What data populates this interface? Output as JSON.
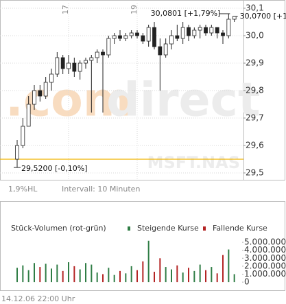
{
  "chart_data": [
    {
      "type": "candlestick",
      "x": [
        930,
        940,
        950,
        960,
        970,
        980,
        990,
        1000,
        1010,
        1020,
        1030,
        1040,
        1050,
        1060,
        1070,
        1080,
        1090,
        1100,
        1110,
        1120,
        1130,
        1140,
        1150,
        1160,
        1170,
        1180,
        1190,
        1200,
        1210,
        1220,
        1230,
        1240,
        1250,
        1260,
        1270,
        1280,
        1290,
        1300,
        1310
      ],
      "open": [
        29.55,
        29.6,
        29.67,
        29.75,
        29.8,
        29.78,
        29.83,
        29.86,
        29.92,
        29.88,
        29.9,
        29.87,
        29.9,
        29.91,
        29.92,
        29.94,
        29.93,
        29.99,
        30.0,
        29.99,
        30.0,
        30.01,
        30.0,
        29.98,
        30.03,
        29.96,
        29.93,
        29.97,
        30.0,
        29.99,
        30.03,
        30.0,
        30.02,
        30.03,
        30.01,
        30.03,
        30.01,
        30.0,
        30.06
      ],
      "high": [
        29.62,
        29.7,
        29.78,
        29.82,
        29.82,
        29.85,
        29.88,
        29.94,
        29.93,
        29.93,
        29.92,
        29.91,
        29.92,
        29.93,
        29.95,
        29.95,
        30.0,
        30.01,
        30.02,
        30.01,
        30.02,
        30.02,
        30.01,
        30.04,
        30.05,
        29.99,
        29.99,
        30.02,
        30.04,
        30.05,
        30.04,
        30.03,
        30.04,
        30.04,
        30.04,
        30.03,
        30.02,
        30.08,
        30.07
      ],
      "low": [
        29.52,
        29.59,
        29.67,
        29.73,
        29.76,
        29.77,
        29.8,
        29.85,
        29.86,
        29.86,
        29.85,
        29.84,
        29.88,
        29.72,
        29.9,
        29.72,
        29.92,
        29.97,
        29.98,
        29.98,
        29.99,
        29.99,
        29.97,
        29.96,
        29.95,
        29.8,
        29.92,
        29.95,
        29.98,
        29.97,
        29.98,
        29.99,
        29.99,
        30.0,
        30.0,
        29.99,
        29.97,
        29.99,
        30.05
      ],
      "close": [
        29.6,
        29.67,
        29.75,
        29.8,
        29.78,
        29.83,
        29.86,
        29.92,
        29.88,
        29.9,
        29.87,
        29.9,
        29.91,
        29.92,
        29.94,
        29.93,
        29.99,
        30.0,
        29.99,
        30.0,
        30.01,
        30.0,
        29.98,
        30.03,
        29.96,
        29.93,
        29.97,
        30.0,
        29.99,
        30.03,
        30.0,
        30.02,
        30.03,
        30.01,
        30.03,
        30.01,
        30.0,
        30.06,
        30.07
      ],
      "up_color": "#ffffff",
      "down_color": "#222222",
      "wick_color": "#222222",
      "xlim": [
        900,
        1326
      ],
      "xticks": [
        {
          "value": 1020,
          "label": "17"
        },
        {
          "value": 1140,
          "label": "19"
        }
      ],
      "ylim": [
        29.475,
        30.1175
      ],
      "yticks": [
        {
          "value": 29.5,
          "label": "29,5"
        },
        {
          "value": 29.6,
          "label": "29,6"
        },
        {
          "value": 29.7,
          "label": "29,7"
        },
        {
          "value": 29.8,
          "label": "29,8"
        },
        {
          "value": 29.9,
          "label": "29,9"
        },
        {
          "value": 30.0,
          "label": "30,0"
        },
        {
          "value": 30.1,
          "label": "30,1"
        }
      ],
      "grid": true,
      "reference_line": {
        "value": 29.55,
        "color": "#f0b400"
      },
      "annotations": [
        {
          "label": "30,0801 [+1,79%]",
          "value": 30.0801,
          "x": 1300
        },
        {
          "label": "30,0700 [+1",
          "value": 30.07,
          "x": 1310
        },
        {
          "label": "29,5200 [-0,10%]",
          "value": 29.52,
          "x": 930
        }
      ],
      "watermark": [
        ".com",
        "direct",
        "MSFT.NAS"
      ]
    },
    {
      "type": "volume",
      "title": "Stück-Volumen (rot-grün)",
      "x": [
        930,
        940,
        950,
        960,
        970,
        980,
        990,
        1000,
        1010,
        1020,
        1030,
        1040,
        1050,
        1060,
        1070,
        1080,
        1090,
        1100,
        1110,
        1120,
        1130,
        1140,
        1150,
        1160,
        1170,
        1180,
        1190,
        1200,
        1210,
        1220,
        1230,
        1240,
        1250,
        1260,
        1270,
        1280,
        1290,
        1300,
        1310
      ],
      "values": [
        1800000,
        2100000,
        1500000,
        2400000,
        1900000,
        2300000,
        1700000,
        2200000,
        1400000,
        2500000,
        2000000,
        1600000,
        2400000,
        2200000,
        1200000,
        1000000,
        1800000,
        900000,
        1400000,
        1100000,
        2000000,
        1500000,
        2600000,
        5200000,
        1300000,
        3000000,
        1900000,
        1600000,
        2100000,
        1200000,
        1800000,
        1400000,
        2200000,
        1500000,
        1900000,
        1100000,
        3400000,
        4100000,
        1000000
      ],
      "legend": [
        {
          "name": "Steigende Kurse",
          "color": "#2f7d45"
        },
        {
          "name": "Fallende Kurse",
          "color": "#b42424"
        }
      ],
      "xlim": [
        900,
        1326
      ],
      "ylim": [
        -250000,
        6000000
      ],
      "yticks": [
        0,
        {
          "value": 1000000,
          "label": "1.000.000"
        },
        {
          "value": 2000000,
          "label": "2.000.000"
        },
        {
          "value": 3000000,
          "label": "3.000.000"
        },
        {
          "value": 4000000,
          "label": "4.000.000"
        },
        {
          "value": 5000000,
          "label": "5.000.000"
        }
      ]
    }
  ],
  "info": {
    "range": "1,9%HL",
    "interval": "Intervall: 10 Minuten",
    "timestamp": "14.12.06 22:00 Uhr"
  }
}
